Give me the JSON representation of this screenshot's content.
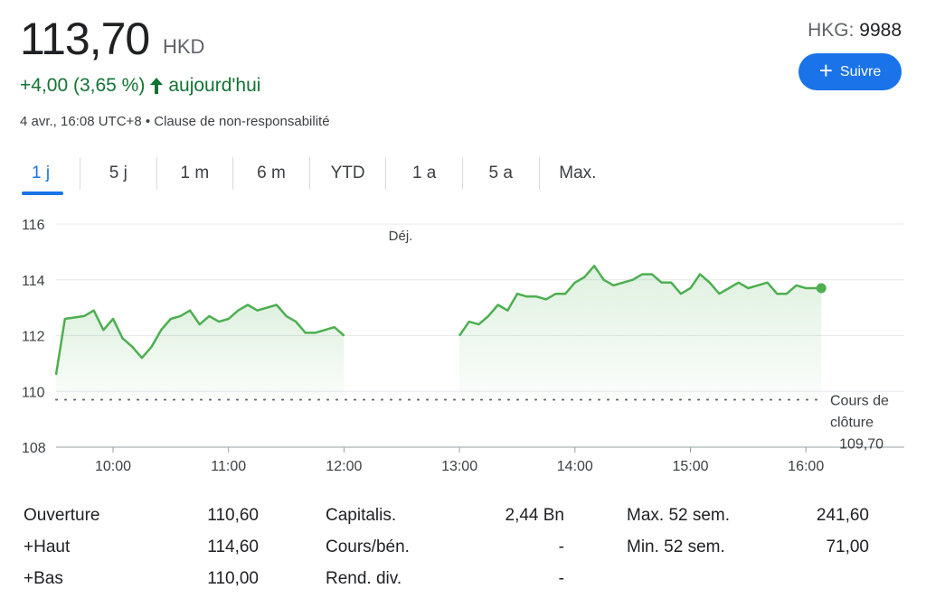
{
  "quote": {
    "price": "113,70",
    "currency": "HKD",
    "change": "+4,00 (3,65 %)",
    "change_period": "aujourd'hui",
    "timestamp": "4 avr., 16:08 UTC+8",
    "separator": "•",
    "disclaimer": "Clause de non-responsabilité",
    "exchange": "HKG:",
    "symbol": "9988"
  },
  "follow_button": {
    "icon": "plus-icon",
    "label": "Suivre"
  },
  "colors": {
    "accent": "#1a73e8",
    "up": "#137333",
    "line": "#4caf50"
  },
  "tabs": [
    {
      "label": "1 j",
      "active": true
    },
    {
      "label": "5 j",
      "active": false
    },
    {
      "label": "1 m",
      "active": false
    },
    {
      "label": "6 m",
      "active": false
    },
    {
      "label": "YTD",
      "active": false
    },
    {
      "label": "1 a",
      "active": false
    },
    {
      "label": "5 a",
      "active": false
    },
    {
      "label": "Max.",
      "active": false
    }
  ],
  "chart_data": {
    "type": "line",
    "x_ticks": [
      "10:00",
      "11:00",
      "12:00",
      "13:00",
      "14:00",
      "15:00",
      "16:00"
    ],
    "y_ticks": [
      "116",
      "114",
      "112",
      "110",
      "108"
    ],
    "ylim": [
      108,
      116.5
    ],
    "annotation_break": "Déj.",
    "previous_close_label": [
      "Cours de",
      "clôture"
    ],
    "previous_close_value": "109,70",
    "previous_close": 109.7,
    "series": [
      {
        "segment": "morning",
        "x": [
          "09:30",
          "09:35",
          "09:45",
          "09:50",
          "09:55",
          "10:00",
          "10:05",
          "10:10",
          "10:15",
          "10:20",
          "10:25",
          "10:30",
          "10:35",
          "10:40",
          "10:45",
          "10:50",
          "10:55",
          "11:00",
          "11:05",
          "11:10",
          "11:15",
          "11:20",
          "11:25",
          "11:30",
          "11:35",
          "11:40",
          "11:45",
          "11:50",
          "11:55",
          "12:00"
        ],
        "values": [
          110.6,
          112.6,
          112.7,
          112.9,
          112.2,
          112.6,
          111.9,
          111.6,
          111.2,
          111.6,
          112.2,
          112.6,
          112.7,
          112.9,
          112.4,
          112.7,
          112.5,
          112.6,
          112.9,
          113.1,
          112.9,
          113.0,
          113.1,
          112.7,
          112.5,
          112.1,
          112.1,
          112.2,
          112.3,
          112.0
        ]
      },
      {
        "segment": "afternoon",
        "x": [
          "13:00",
          "13:05",
          "13:10",
          "13:15",
          "13:20",
          "13:25",
          "13:30",
          "13:35",
          "13:40",
          "13:45",
          "13:50",
          "13:55",
          "14:00",
          "14:05",
          "14:10",
          "14:15",
          "14:20",
          "14:25",
          "14:30",
          "14:35",
          "14:40",
          "14:45",
          "14:50",
          "14:55",
          "15:00",
          "15:05",
          "15:10",
          "15:15",
          "15:20",
          "15:25",
          "15:30",
          "15:35",
          "15:40",
          "15:45",
          "15:50",
          "15:55",
          "16:00",
          "16:05",
          "16:08"
        ],
        "values": [
          112.0,
          112.5,
          112.4,
          112.7,
          113.1,
          112.9,
          113.5,
          113.4,
          113.4,
          113.3,
          113.5,
          113.5,
          113.9,
          114.1,
          114.5,
          114.0,
          113.8,
          113.9,
          114.0,
          114.2,
          114.2,
          113.9,
          113.9,
          113.5,
          113.7,
          114.2,
          113.9,
          113.5,
          113.7,
          113.9,
          113.7,
          113.8,
          113.9,
          113.5,
          113.5,
          113.8,
          113.7,
          113.7,
          113.7
        ]
      }
    ]
  },
  "stats": [
    {
      "label": "Ouverture",
      "value": "110,60"
    },
    {
      "label": "+Haut",
      "value": "114,60"
    },
    {
      "label": "+Bas",
      "value": "110,00"
    },
    {
      "label": "Capitalis.",
      "value": "2,44 Bn"
    },
    {
      "label": "Cours/bén.",
      "value": "-"
    },
    {
      "label": "Rend. div.",
      "value": "-"
    },
    {
      "label": "Max. 52 sem.",
      "value": "241,60"
    },
    {
      "label": "Min. 52 sem.",
      "value": "71,00"
    }
  ]
}
